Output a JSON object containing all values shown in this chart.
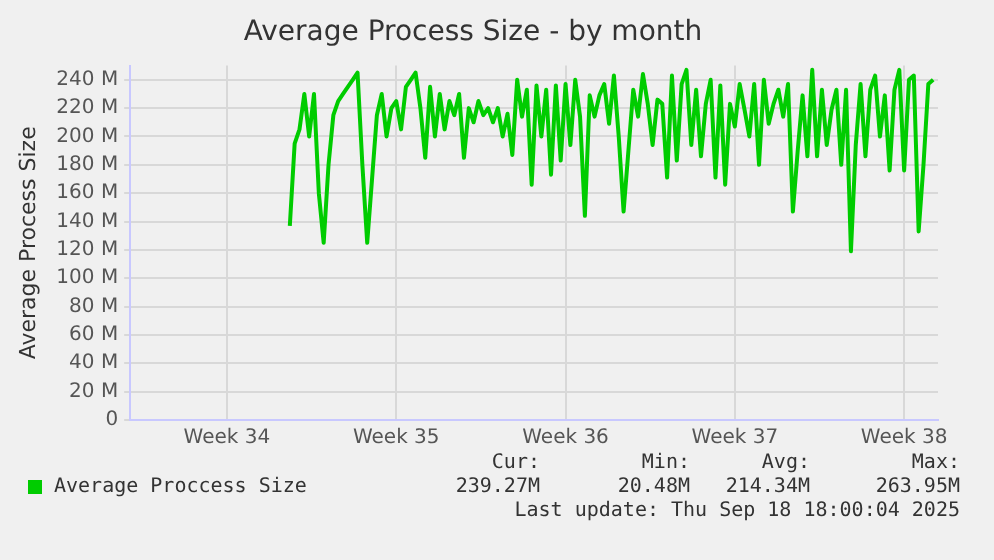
{
  "chart_data": {
    "type": "line",
    "title": "Average Process Size - by month",
    "ylabel": "Average Process Size",
    "categories": [
      null,
      null,
      null,
      null,
      null,
      null,
      null,
      null,
      null,
      null,
      null,
      null,
      null,
      null,
      null,
      null,
      null,
      null,
      null,
      null,
      "Week 34",
      null,
      null,
      null,
      null,
      null,
      null,
      null,
      null,
      null,
      null,
      null,
      null,
      null,
      null,
      null,
      null,
      null,
      null,
      null,
      null,
      null,
      null,
      null,
      null,
      null,
      null,
      null,
      null,
      null,
      null,
      null,
      null,
      null,
      null,
      "Week 35",
      null,
      null,
      null,
      null,
      null,
      null,
      null,
      null,
      null,
      null,
      null,
      null,
      null,
      null,
      null,
      null,
      null,
      null,
      null,
      null,
      null,
      null,
      null,
      null,
      null,
      null,
      null,
      null,
      null,
      null,
      null,
      null,
      null,
      null,
      "Week 36",
      null,
      null,
      null,
      null,
      null,
      null,
      null,
      null,
      null,
      null,
      null,
      null,
      null,
      null,
      null,
      null,
      null,
      null,
      null,
      null,
      null,
      null,
      null,
      null,
      null,
      null,
      null,
      null,
      null,
      null,
      null,
      null,
      null,
      null,
      "Week 37",
      null,
      null,
      null,
      null,
      null,
      null,
      null,
      null,
      null,
      null,
      null,
      null,
      null,
      null,
      null,
      null,
      null,
      null,
      null,
      null,
      null,
      null,
      null,
      null,
      null,
      null,
      null,
      null,
      null,
      null,
      null,
      null,
      null,
      null,
      "Week 38",
      null,
      null,
      null,
      null,
      null,
      null,
      null
    ],
    "series": [
      {
        "name": "Average Proccess Size",
        "color": "#00cc00",
        "values": [
          null,
          null,
          null,
          null,
          null,
          null,
          null,
          null,
          null,
          null,
          null,
          null,
          null,
          null,
          null,
          null,
          null,
          null,
          null,
          null,
          null,
          null,
          null,
          null,
          null,
          null,
          null,
          null,
          null,
          null,
          null,
          null,
          null,
          137,
          195,
          205,
          230,
          200,
          230,
          160,
          125,
          180,
          215,
          225,
          230,
          235,
          240,
          245,
          180,
          125,
          170,
          215,
          230,
          200,
          220,
          225,
          205,
          235,
          240,
          245,
          220,
          185,
          235,
          200,
          230,
          205,
          225,
          215,
          230,
          185,
          220,
          210,
          225,
          215,
          220,
          210,
          220,
          200,
          216,
          187,
          240,
          214,
          233,
          166,
          236,
          200,
          233,
          173,
          236,
          183,
          237,
          194,
          240,
          214,
          144,
          229,
          214,
          229,
          237,
          209,
          243,
          200,
          147,
          190,
          233,
          214,
          244,
          223,
          194,
          226,
          223,
          171,
          243,
          183,
          237,
          247,
          194,
          233,
          186,
          223,
          240,
          171,
          236,
          166,
          223,
          207,
          237,
          219,
          200,
          237,
          180,
          240,
          209,
          223,
          233,
          214,
          237,
          147,
          190,
          229,
          186,
          247,
          186,
          233,
          194,
          219,
          233,
          180,
          233,
          119,
          194,
          237,
          186,
          233,
          243,
          200,
          229,
          176,
          233,
          247,
          176,
          240,
          243,
          133,
          180,
          237,
          240,
          null
        ]
      }
    ],
    "ylim": [
      0,
      250
    ],
    "yticks": [
      {
        "value": 0,
        "label": "0"
      },
      {
        "value": 20,
        "label": "20 M"
      },
      {
        "value": 40,
        "label": "40 M"
      },
      {
        "value": 60,
        "label": "60 M"
      },
      {
        "value": 80,
        "label": "80 M"
      },
      {
        "value": 100,
        "label": "100 M"
      },
      {
        "value": 120,
        "label": "120 M"
      },
      {
        "value": 140,
        "label": "140 M"
      },
      {
        "value": 160,
        "label": "160 M"
      },
      {
        "value": 180,
        "label": "180 M"
      },
      {
        "value": 200,
        "label": "200 M"
      },
      {
        "value": 220,
        "label": "220 M"
      },
      {
        "value": 240,
        "label": "240 M"
      }
    ],
    "grid": true,
    "legend": "bottom",
    "marker": "none",
    "line_style": "solid",
    "annotations": [
      "Cur:",
      "Min:",
      "Avg:",
      "Max:",
      "239.27M",
      "20.48M",
      "214.34M",
      "263.95M",
      "Last update: Thu Sep 18 18:00:04 2025"
    ]
  }
}
